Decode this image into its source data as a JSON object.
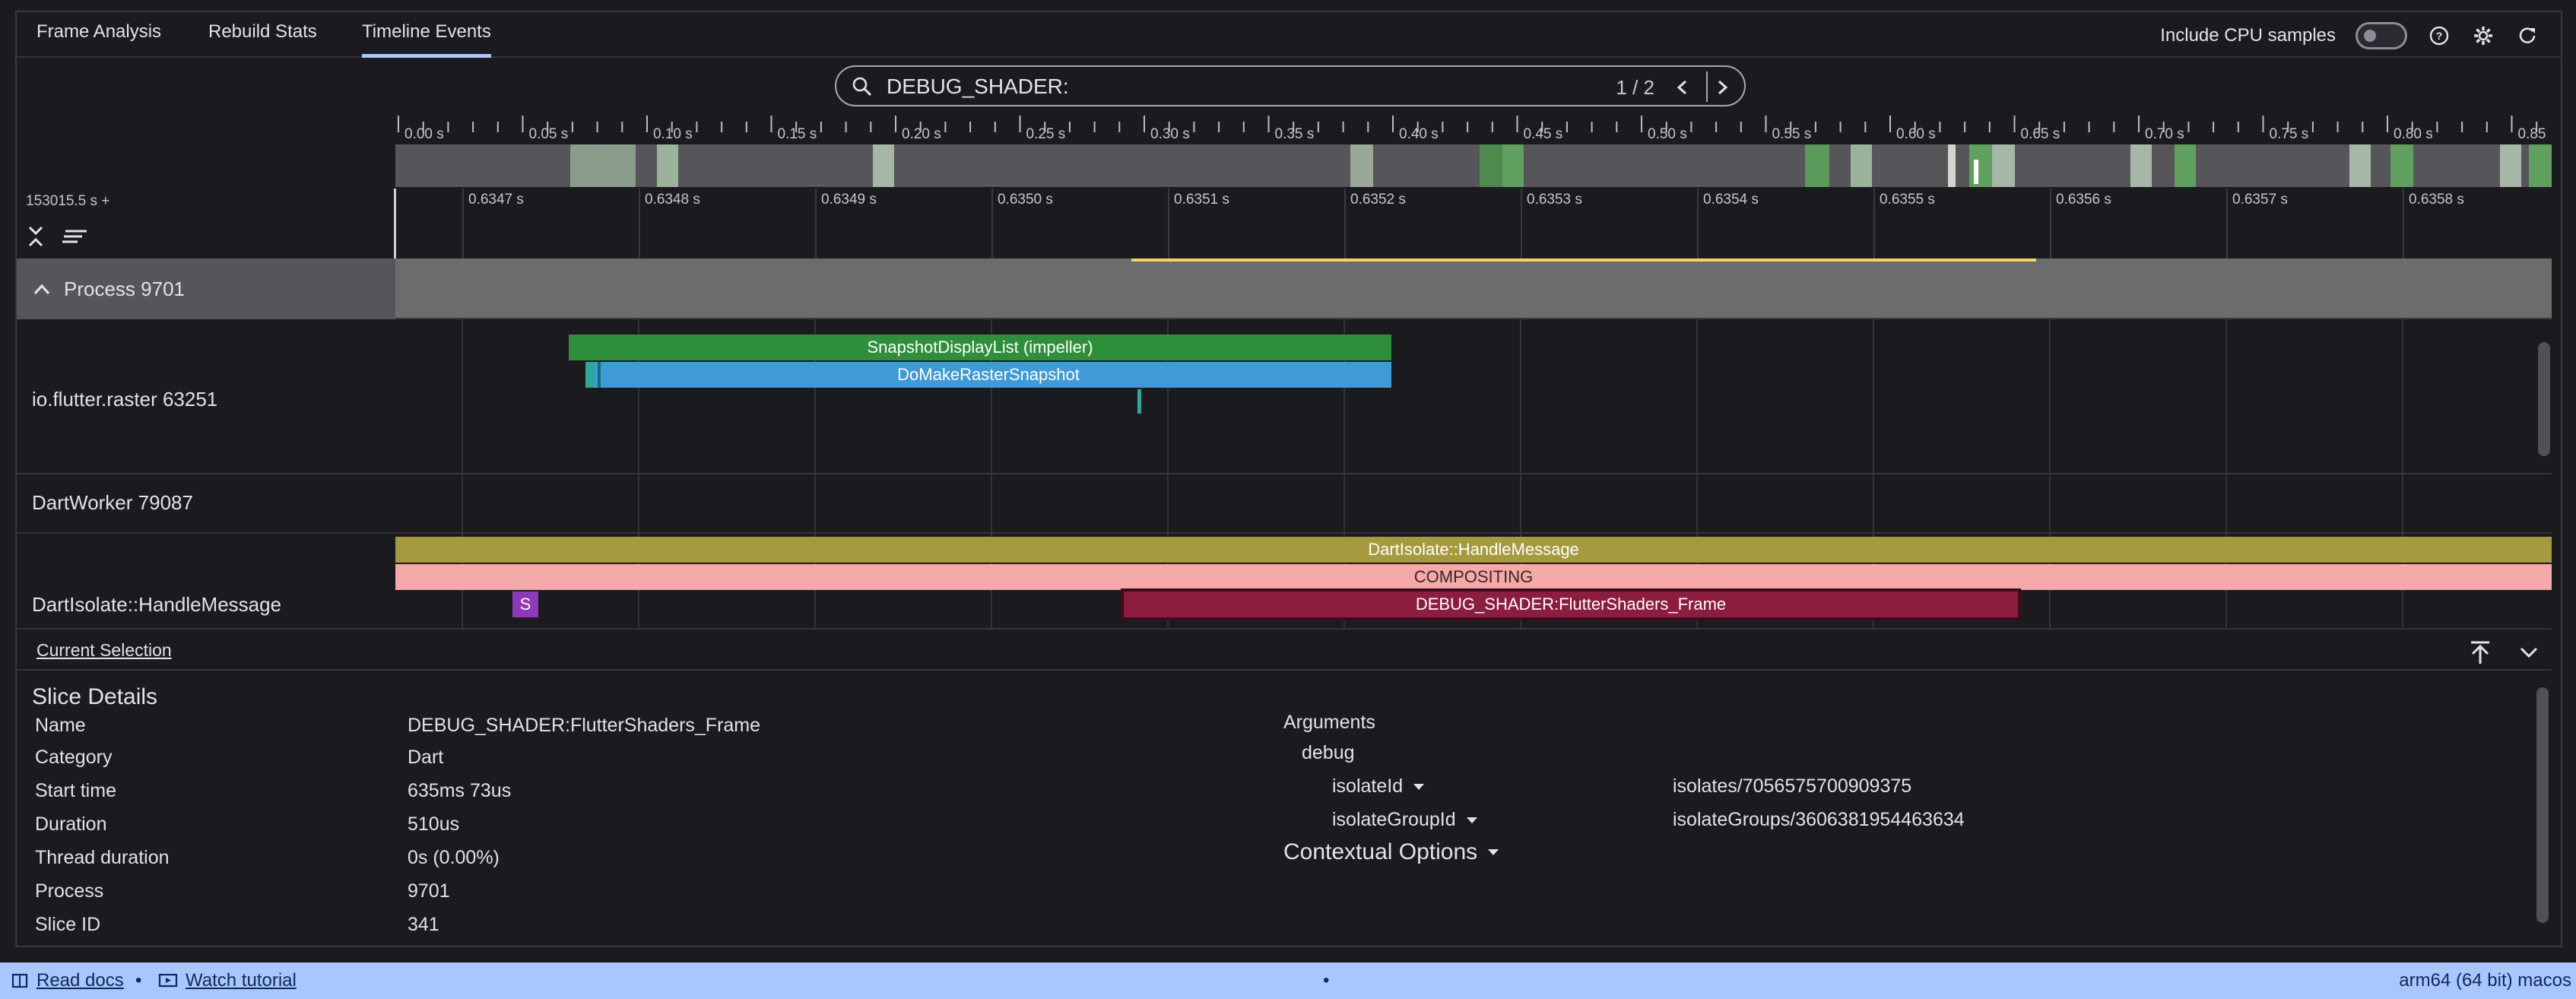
{
  "tabs": [
    {
      "label": "Frame Analysis",
      "active": false
    },
    {
      "label": "Rebuild Stats",
      "active": false
    },
    {
      "label": "Timeline Events",
      "active": true
    }
  ],
  "toolbar": {
    "cpu_samples_label": "Include CPU samples",
    "cpu_samples_enabled": false,
    "icons": [
      "help-icon",
      "settings-icon",
      "refresh-icon"
    ]
  },
  "search": {
    "value": "DEBUG_SHADER:",
    "counter": "1 / 2"
  },
  "overview_ticks": [
    "0.00 s",
    "0.05 s",
    "0.10 s",
    "0.15 s",
    "0.20 s",
    "0.25 s",
    "0.30 s",
    "0.35 s",
    "0.40 s",
    "0.45 s",
    "0.50 s",
    "0.55 s",
    "0.60 s",
    "0.65 s",
    "0.70 s",
    "0.75 s",
    "0.80 s",
    "0.85 s"
  ],
  "detail_axis": {
    "origin": "153015.5 s +",
    "ticks": [
      "0.6347 s",
      "0.6348 s",
      "0.6349 s",
      "0.6350 s",
      "0.6351 s",
      "0.6352 s",
      "0.6353 s",
      "0.6354 s",
      "0.6355 s",
      "0.6356 s",
      "0.6357 s",
      "0.6358 s"
    ]
  },
  "process": {
    "label": "Process 9701"
  },
  "threads": [
    {
      "label": "io.flutter.raster 63251"
    },
    {
      "label": "DartWorker 79087"
    },
    {
      "label": "DartIsolate::HandleMessage"
    }
  ],
  "slices": {
    "snapshot": "SnapshotDisplayList (impeller)",
    "raster": "DoMakeRasterSnapshot",
    "handle_message": "DartIsolate::HandleMessage",
    "compositing": "COMPOSITING",
    "shader_frame": "DEBUG_SHADER:FlutterShaders_Frame",
    "s_marker": "S"
  },
  "colors": {
    "snapshot": "#2e8f3a",
    "raster": "#3f9ad8",
    "handle_message": "#a59a3d",
    "compositing": "#f4a9a8",
    "shader_frame": "#8c1d3f",
    "s_marker": "#8e3ab8",
    "highlight": "#f1d66a",
    "status_bar": "#a9c6ff"
  },
  "details": {
    "tab_label": "Current Selection",
    "title": "Slice Details",
    "fields": [
      {
        "label": "Name",
        "value": "DEBUG_SHADER:FlutterShaders_Frame"
      },
      {
        "label": "Category",
        "value": "Dart"
      },
      {
        "label": "Start time",
        "value": "635ms 73us"
      },
      {
        "label": "Duration",
        "value": "510us"
      },
      {
        "label": "Thread duration",
        "value": "0s (0.00%)"
      },
      {
        "label": "Process",
        "value": "9701"
      },
      {
        "label": "Slice ID",
        "value": "341"
      }
    ],
    "arguments_label": "Arguments",
    "debug_label": "debug",
    "args": [
      {
        "key": "isolateId",
        "value": "isolates/7056575700909375"
      },
      {
        "key": "isolateGroupId",
        "value": "isolateGroups/3606381954463634"
      }
    ],
    "contextual_label": "Contextual Options"
  },
  "status": {
    "read_docs": "Read docs",
    "separator": "•",
    "watch_tutorial": "Watch tutorial",
    "center_dot": "•",
    "platform": "arm64 (64 bit) macos"
  }
}
